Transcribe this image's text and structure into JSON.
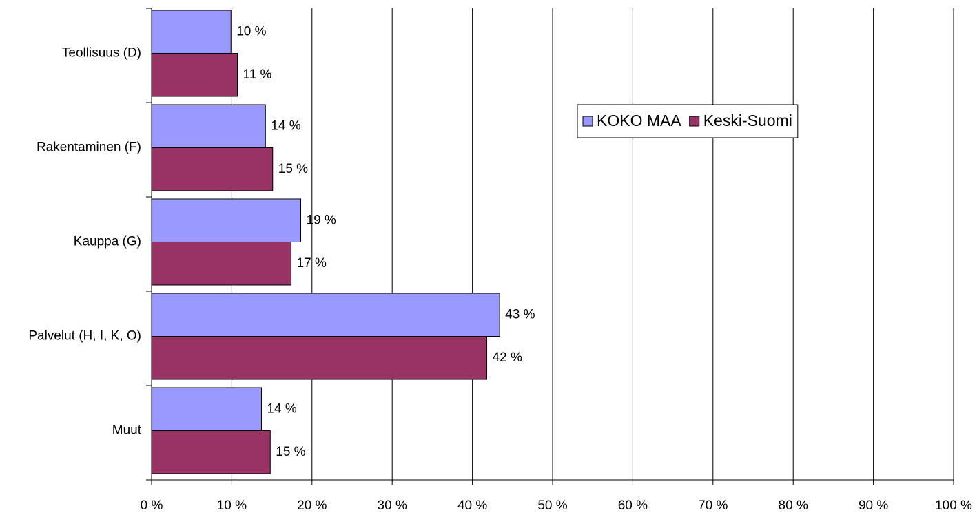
{
  "chart_data": {
    "type": "barh",
    "categories": [
      "Teollisuus (D)",
      "Rakentaminen (F)",
      "Kauppa (G)",
      "Palvelut (H, I, K, O)",
      "Muut"
    ],
    "series": [
      {
        "name": "KOKO MAA",
        "color": "#9999ff",
        "values": [
          9.9,
          14.2,
          18.6,
          43.4,
          13.7
        ],
        "value_labels": [
          "10 %",
          "14 %",
          "19 %",
          "43 %",
          "14 %"
        ]
      },
      {
        "name": "Keski-Suomi",
        "color": "#993366",
        "values": [
          10.7,
          15.1,
          17.4,
          41.8,
          14.8
        ],
        "value_labels": [
          "11 %",
          "15 %",
          "17 %",
          "42 %",
          "15 %"
        ]
      }
    ],
    "xlim": [
      0,
      100
    ],
    "xticks": [
      {
        "value": 0,
        "label": "0 %"
      },
      {
        "value": 10,
        "label": "10 %"
      },
      {
        "value": 20,
        "label": "20 %"
      },
      {
        "value": 30,
        "label": "30 %"
      },
      {
        "value": 40,
        "label": "40 %"
      },
      {
        "value": 50,
        "label": "50 %"
      },
      {
        "value": 60,
        "label": "60 %"
      },
      {
        "value": 70,
        "label": "70 %"
      },
      {
        "value": 80,
        "label": "80 %"
      },
      {
        "value": 90,
        "label": "90 %"
      },
      {
        "value": 100,
        "label": "100 %"
      }
    ],
    "grid": true,
    "legend": "right"
  }
}
